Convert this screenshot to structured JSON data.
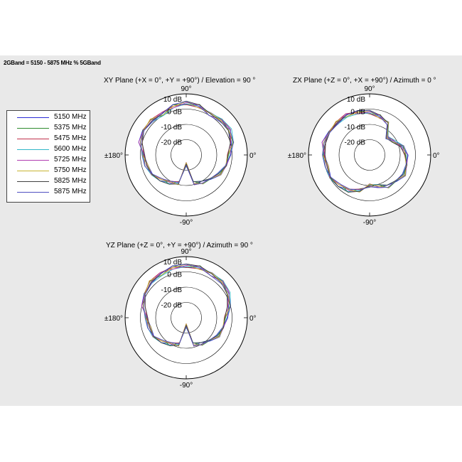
{
  "header": {
    "band_title": "2GBand = 5150 - 5875 MHz % 5GBand"
  },
  "legend": {
    "entries": [
      {
        "label": "5150 MHz",
        "color": "#2b2bd6"
      },
      {
        "label": "5375 MHz",
        "color": "#2e8b2e"
      },
      {
        "label": "5475 MHz",
        "color": "#c0304a"
      },
      {
        "label": "5600 MHz",
        "color": "#30b7c8"
      },
      {
        "label": "5725 MHz",
        "color": "#b03cb0"
      },
      {
        "label": "5750 MHz",
        "color": "#c8b432"
      },
      {
        "label": "5825 MHz",
        "color": "#404040"
      },
      {
        "label": "5875 MHz",
        "color": "#5050c0"
      }
    ]
  },
  "chart_data": [
    {
      "type": "polar",
      "title": "XY Plane (+X = 0°, +Y = +90°) / Elevation = 90 °",
      "angle_labels": {
        "top": "90°",
        "bottom": "-90°",
        "left": "±180°",
        "right": "0°"
      },
      "radial_labels": [
        "10 dB",
        "0 dB",
        "-10 dB",
        "-20 dB"
      ],
      "radial_range_db": [
        -30,
        10
      ],
      "series_names": [
        "5150 MHz",
        "5375 MHz",
        "5475 MHz",
        "5600 MHz",
        "5725 MHz",
        "5750 MHz",
        "5825 MHz",
        "5875 MHz"
      ],
      "theta_deg": [
        0,
        15,
        30,
        45,
        60,
        75,
        90,
        105,
        120,
        135,
        150,
        165,
        180,
        195,
        210,
        225,
        240,
        255,
        270,
        285,
        300,
        315,
        330,
        345
      ],
      "base_gain_db": [
        -2,
        1,
        3,
        2,
        1,
        3,
        4,
        3,
        1,
        2,
        3,
        1,
        -2,
        -3,
        -5,
        -7,
        -9,
        -11,
        -24,
        -11,
        -9,
        -7,
        -5,
        -3
      ]
    },
    {
      "type": "polar",
      "title": "ZX Plane (+Z = 0°, +X = +90°) / Azimuth = 0 °",
      "angle_labels": {
        "top": "90°",
        "bottom": "-90°",
        "left": "±180°",
        "right": "0°"
      },
      "radial_labels": [
        "10 dB",
        "0 dB",
        "-10 dB",
        "-20 dB"
      ],
      "radial_range_db": [
        -30,
        10
      ],
      "series_names": [
        "5150 MHz",
        "5375 MHz",
        "5475 MHz",
        "5600 MHz",
        "5725 MHz",
        "5750 MHz",
        "5825 MHz",
        "5875 MHz"
      ],
      "theta_deg": [
        0,
        15,
        30,
        45,
        60,
        75,
        90,
        105,
        120,
        135,
        150,
        165,
        180,
        195,
        210,
        225,
        240,
        255,
        270,
        285,
        300,
        315,
        330,
        345
      ],
      "base_gain_db": [
        -6,
        -8,
        -12,
        -14,
        -6,
        -4,
        -2,
        -1,
        0,
        0,
        1,
        1,
        0,
        -1,
        -1,
        -2,
        -3,
        -6,
        -10,
        -9,
        -6,
        -5,
        -4,
        -5
      ]
    },
    {
      "type": "polar",
      "title": "YZ Plane (+Z = 0°, +Y = +90°) / Azimuth = 90 °",
      "angle_labels": {
        "top": "90°",
        "bottom": "-90°",
        "left": "±180°",
        "right": "0°"
      },
      "radial_labels": [
        "10 dB",
        "0 dB",
        "-10 dB",
        "-20 dB"
      ],
      "radial_range_db": [
        -30,
        10
      ],
      "series_names": [
        "5150 MHz",
        "5375 MHz",
        "5475 MHz",
        "5600 MHz",
        "5725 MHz",
        "5750 MHz",
        "5825 MHz",
        "5875 MHz"
      ],
      "theta_deg": [
        0,
        15,
        30,
        45,
        60,
        75,
        90,
        105,
        120,
        135,
        150,
        165,
        180,
        195,
        210,
        225,
        240,
        255,
        270,
        285,
        300,
        315,
        330,
        345
      ],
      "base_gain_db": [
        -4,
        -1,
        2,
        3,
        3,
        4,
        4,
        4,
        3,
        3,
        2,
        -1,
        -4,
        -5,
        -6,
        -8,
        -10,
        -12,
        -25,
        -12,
        -10,
        -8,
        -6,
        -5
      ]
    }
  ]
}
